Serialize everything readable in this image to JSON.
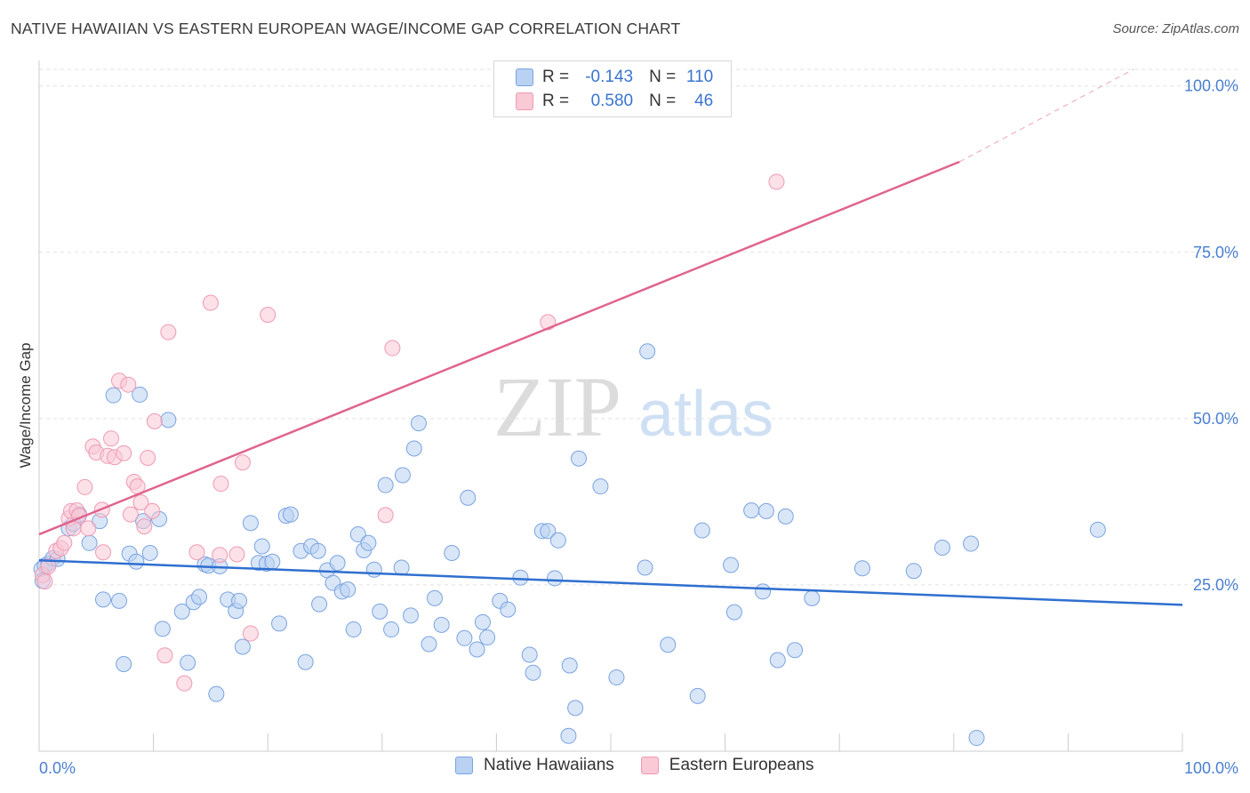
{
  "title": "NATIVE HAWAIIAN VS EASTERN EUROPEAN WAGE/INCOME GAP CORRELATION CHART",
  "source": "Source: ZipAtlas.com",
  "watermark": {
    "zip": "ZIP",
    "atlas": "atlas"
  },
  "legend": {
    "r_label": "R =",
    "n_label": "N =",
    "series": [
      {
        "name": "Native Hawaiians",
        "r": "-0.143",
        "n": "110",
        "fill": "#b9d1f2",
        "stroke": "#7aa4e0"
      },
      {
        "name": "Eastern Europeans",
        "r": "0.580",
        "n": "46",
        "fill": "#f9c9d6",
        "stroke": "#ee9ab3"
      }
    ]
  },
  "chart_data": {
    "type": "scatter",
    "title": "NATIVE HAWAIIAN VS EASTERN EUROPEAN WAGE/INCOME GAP CORRELATION CHART",
    "xlabel": "",
    "ylabel": "Wage/Income Gap",
    "xlim": [
      0,
      100
    ],
    "ylim": [
      0,
      102.5
    ],
    "x_tick_labels": [
      "0.0%",
      "100.0%"
    ],
    "y_ticks": [
      25,
      50,
      75,
      100
    ],
    "y_tick_labels": [
      "25.0%",
      "50.0%",
      "75.0%",
      "100.0%"
    ],
    "grid": "horizontal dashed",
    "legend_position": "top-center",
    "series": [
      {
        "name": "Native Hawaiians",
        "color": "#7aa4e0",
        "fill": "#b9d1f2",
        "trend": {
          "x0": 0,
          "y0": 28.7,
          "x1": 100,
          "y1": 22.0,
          "color": "#2f6fcf"
        },
        "points": [
          [
            0.2,
            27.4
          ],
          [
            0.5,
            27.9
          ],
          [
            0.8,
            28.2
          ],
          [
            1.2,
            29.0
          ],
          [
            1.6,
            28.9
          ],
          [
            2.6,
            33.5
          ],
          [
            3.0,
            34.2
          ],
          [
            3.5,
            35.6
          ],
          [
            4.4,
            31.3
          ],
          [
            5.3,
            34.6
          ],
          [
            5.6,
            22.8
          ],
          [
            6.5,
            53.5
          ],
          [
            7.0,
            22.6
          ],
          [
            7.4,
            13.1
          ],
          [
            7.9,
            29.7
          ],
          [
            8.5,
            28.5
          ],
          [
            8.8,
            53.6
          ],
          [
            9.1,
            34.6
          ],
          [
            9.7,
            29.8
          ],
          [
            10.5,
            34.9
          ],
          [
            10.8,
            18.4
          ],
          [
            11.3,
            49.8
          ],
          [
            12.5,
            21.0
          ],
          [
            13.0,
            13.3
          ],
          [
            13.5,
            22.4
          ],
          [
            14.0,
            23.2
          ],
          [
            14.5,
            28.1
          ],
          [
            14.8,
            27.9
          ],
          [
            15.5,
            8.6
          ],
          [
            15.8,
            27.8
          ],
          [
            16.5,
            22.8
          ],
          [
            17.2,
            21.1
          ],
          [
            17.5,
            22.6
          ],
          [
            17.8,
            15.7
          ],
          [
            18.5,
            34.3
          ],
          [
            19.2,
            28.3
          ],
          [
            19.5,
            30.8
          ],
          [
            19.9,
            28.2
          ],
          [
            20.4,
            28.5
          ],
          [
            21.0,
            19.2
          ],
          [
            21.6,
            35.4
          ],
          [
            22.0,
            35.6
          ],
          [
            22.9,
            30.1
          ],
          [
            23.3,
            13.4
          ],
          [
            23.8,
            30.8
          ],
          [
            24.4,
            30.1
          ],
          [
            24.5,
            22.1
          ],
          [
            25.2,
            27.2
          ],
          [
            25.7,
            25.3
          ],
          [
            26.1,
            28.3
          ],
          [
            26.5,
            24.0
          ],
          [
            27.0,
            24.3
          ],
          [
            27.5,
            18.3
          ],
          [
            27.9,
            32.6
          ],
          [
            28.4,
            30.2
          ],
          [
            28.8,
            31.3
          ],
          [
            29.3,
            27.3
          ],
          [
            29.8,
            21.0
          ],
          [
            30.3,
            40.0
          ],
          [
            30.8,
            18.3
          ],
          [
            31.7,
            27.6
          ],
          [
            31.8,
            41.5
          ],
          [
            32.5,
            20.4
          ],
          [
            32.8,
            45.5
          ],
          [
            33.2,
            49.3
          ],
          [
            34.1,
            16.1
          ],
          [
            34.6,
            23.0
          ],
          [
            35.2,
            19.0
          ],
          [
            36.1,
            29.8
          ],
          [
            37.2,
            17.0
          ],
          [
            37.5,
            38.1
          ],
          [
            38.3,
            15.3
          ],
          [
            38.8,
            19.4
          ],
          [
            39.2,
            17.1
          ],
          [
            40.3,
            22.6
          ],
          [
            41.0,
            21.3
          ],
          [
            42.1,
            26.1
          ],
          [
            42.9,
            14.5
          ],
          [
            43.2,
            11.8
          ],
          [
            44.0,
            33.1
          ],
          [
            44.5,
            33.1
          ],
          [
            45.1,
            26.0
          ],
          [
            45.4,
            31.7
          ],
          [
            46.4,
            12.9
          ],
          [
            46.9,
            6.5
          ],
          [
            47.2,
            44.0
          ],
          [
            49.1,
            39.8
          ],
          [
            50.5,
            11.1
          ],
          [
            53.0,
            27.6
          ],
          [
            53.2,
            60.1
          ],
          [
            55.0,
            16.0
          ],
          [
            57.6,
            8.3
          ],
          [
            58.0,
            33.2
          ],
          [
            60.5,
            28.0
          ],
          [
            60.8,
            20.9
          ],
          [
            62.3,
            36.2
          ],
          [
            63.3,
            24.0
          ],
          [
            63.6,
            36.1
          ],
          [
            64.6,
            13.7
          ],
          [
            65.3,
            35.3
          ],
          [
            66.1,
            15.2
          ],
          [
            67.6,
            23.0
          ],
          [
            72.0,
            27.5
          ],
          [
            76.5,
            27.1
          ],
          [
            79.0,
            30.6
          ],
          [
            81.5,
            31.2
          ],
          [
            82.0,
            2.0
          ],
          [
            46.3,
            2.3
          ],
          [
            92.6,
            33.3
          ],
          [
            0.3,
            25.6
          ]
        ]
      },
      {
        "name": "Eastern Europeans",
        "color": "#ee9ab3",
        "fill": "#f9c9d6",
        "trend": {
          "x0": 0,
          "y0": 32.6,
          "x1": 80.5,
          "y1": 88.6,
          "color": "#e0648e",
          "dashed_to": {
            "x": 100,
            "y": 102.5
          }
        },
        "points": [
          [
            0.3,
            26.5
          ],
          [
            0.5,
            25.5
          ],
          [
            0.8,
            27.8
          ],
          [
            1.5,
            30.1
          ],
          [
            1.9,
            30.5
          ],
          [
            2.2,
            31.3
          ],
          [
            2.6,
            35.0
          ],
          [
            2.8,
            36.1
          ],
          [
            3.0,
            33.5
          ],
          [
            3.3,
            36.2
          ],
          [
            3.5,
            35.4
          ],
          [
            4.0,
            39.7
          ],
          [
            4.3,
            33.5
          ],
          [
            4.7,
            45.8
          ],
          [
            5.0,
            44.9
          ],
          [
            5.5,
            36.3
          ],
          [
            5.6,
            29.9
          ],
          [
            6.0,
            44.4
          ],
          [
            6.3,
            47.0
          ],
          [
            6.6,
            44.2
          ],
          [
            7.0,
            55.7
          ],
          [
            7.4,
            44.8
          ],
          [
            7.8,
            55.1
          ],
          [
            8.0,
            35.6
          ],
          [
            8.3,
            40.5
          ],
          [
            8.6,
            39.8
          ],
          [
            8.9,
            37.4
          ],
          [
            9.2,
            33.8
          ],
          [
            9.5,
            44.1
          ],
          [
            9.9,
            36.1
          ],
          [
            10.1,
            49.6
          ],
          [
            11.0,
            14.4
          ],
          [
            11.3,
            63.0
          ],
          [
            12.7,
            10.2
          ],
          [
            13.8,
            29.9
          ],
          [
            15.0,
            67.4
          ],
          [
            15.8,
            29.5
          ],
          [
            15.9,
            40.2
          ],
          [
            17.3,
            29.6
          ],
          [
            18.5,
            17.7
          ],
          [
            17.8,
            43.4
          ],
          [
            20.0,
            65.6
          ],
          [
            30.3,
            35.5
          ],
          [
            30.9,
            60.6
          ],
          [
            44.5,
            64.5
          ],
          [
            64.5,
            85.6
          ]
        ]
      }
    ]
  }
}
